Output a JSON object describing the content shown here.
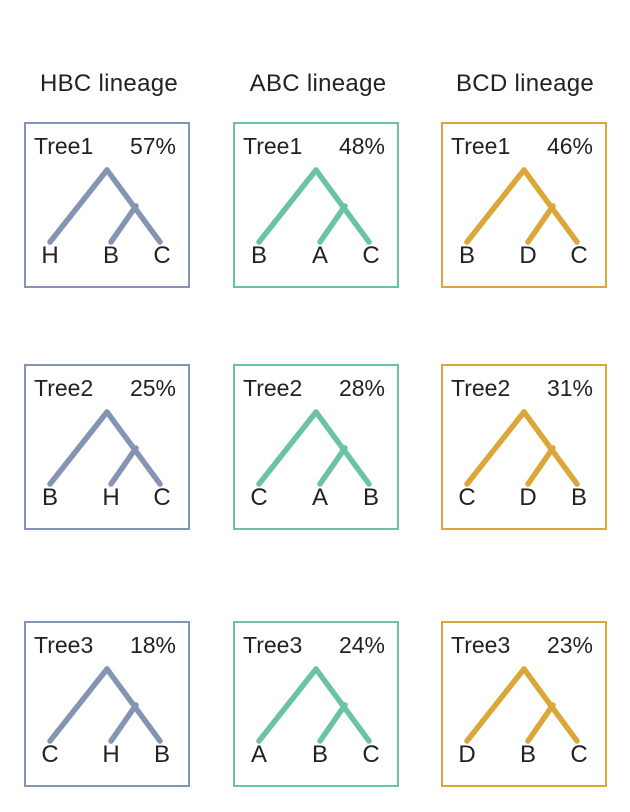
{
  "columns": [
    {
      "title": "HBC lineage",
      "color": "#8494b2",
      "trees": [
        {
          "name": "Tree1",
          "percent": "57%",
          "leaves": [
            "H",
            "B",
            "C"
          ]
        },
        {
          "name": "Tree2",
          "percent": "25%",
          "leaves": [
            "B",
            "H",
            "C"
          ]
        },
        {
          "name": "Tree3",
          "percent": "18%",
          "leaves": [
            "C",
            "H",
            "B"
          ]
        }
      ]
    },
    {
      "title": "ABC lineage",
      "color": "#6cc3a4",
      "trees": [
        {
          "name": "Tree1",
          "percent": "48%",
          "leaves": [
            "B",
            "A",
            "C"
          ]
        },
        {
          "name": "Tree2",
          "percent": "28%",
          "leaves": [
            "C",
            "A",
            "B"
          ]
        },
        {
          "name": "Tree3",
          "percent": "24%",
          "leaves": [
            "A",
            "B",
            "C"
          ]
        }
      ]
    },
    {
      "title": "BCD lineage",
      "color": "#dba73a",
      "trees": [
        {
          "name": "Tree1",
          "percent": "46%",
          "leaves": [
            "B",
            "D",
            "C"
          ]
        },
        {
          "name": "Tree2",
          "percent": "31%",
          "leaves": [
            "C",
            "D",
            "B"
          ]
        },
        {
          "name": "Tree3",
          "percent": "23%",
          "leaves": [
            "D",
            "B",
            "C"
          ]
        }
      ]
    }
  ]
}
